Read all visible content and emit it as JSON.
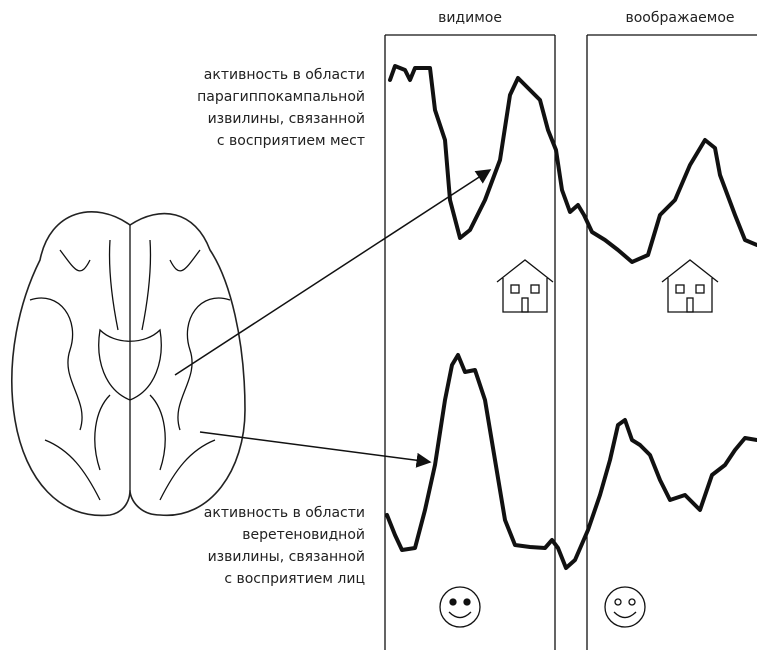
{
  "columns": [
    "видимое",
    "воображаемое"
  ],
  "labels": [
    {
      "lines": [
        "активность в области",
        "парагиппокампальной",
        "извилины, связанной",
        "с восприятием мест"
      ]
    },
    {
      "lines": [
        "активность в области",
        "веретеновидной",
        "извилины, связанной",
        "с восприятием лиц"
      ]
    }
  ]
}
